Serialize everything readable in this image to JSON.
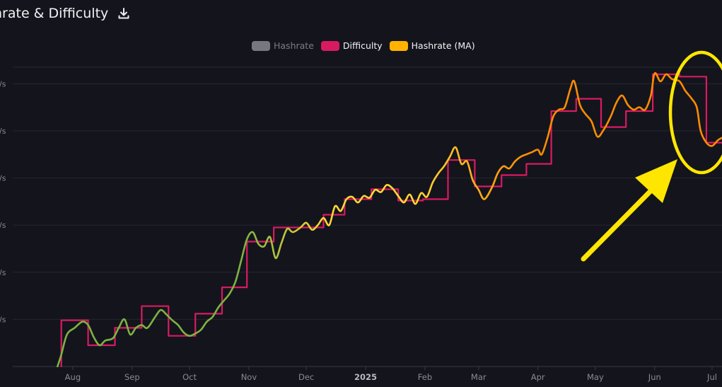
{
  "title": "hrate & Difficulty",
  "icons": {
    "download": "download-icon"
  },
  "legend": [
    {
      "label": "Hashrate",
      "color": "#77777f",
      "text_color": "#7c7c86",
      "disabled": true
    },
    {
      "label": "Difficulty",
      "color": "#d81b60",
      "text_color": "#f2f2f5",
      "disabled": false
    },
    {
      "label": "Hashrate (MA)",
      "color": "#ffb300",
      "text_color": "#f2f2f5",
      "disabled": false
    }
  ],
  "colors": {
    "background": "#14141d",
    "grid": "#262633",
    "difficulty": "#d81b60",
    "ma_low": "#7cb342",
    "ma_mid": "#fdd835",
    "ma_high": "#fb8c00",
    "annotation": "#ffe600"
  },
  "chart_data": {
    "type": "line",
    "title": "",
    "x_tick_labels": [
      {
        "label": "Aug",
        "date": "2024-08-01",
        "bold": false
      },
      {
        "label": "Sep",
        "date": "2024-09-01",
        "bold": false
      },
      {
        "label": "Oct",
        "date": "2024-10-01",
        "bold": false
      },
      {
        "label": "Nov",
        "date": "2024-11-01",
        "bold": false
      },
      {
        "label": "Dec",
        "date": "2024-12-01",
        "bold": false
      },
      {
        "label": "2025",
        "date": "2025-01-01",
        "bold": true
      },
      {
        "label": "Feb",
        "date": "2025-02-01",
        "bold": false
      },
      {
        "label": "Mar",
        "date": "2025-03-01",
        "bold": false
      },
      {
        "label": "Apr",
        "date": "2025-04-01",
        "bold": false
      },
      {
        "label": "May",
        "date": "2025-05-01",
        "bold": false
      },
      {
        "label": "Jun",
        "date": "2025-06-01",
        "bold": false
      },
      {
        "label": "Jul",
        "date": "2025-07-01",
        "bold": false
      }
    ],
    "y_tick_labels": [
      "/s",
      "/s",
      "/s",
      "/s",
      "/s",
      "/s"
    ],
    "y_tick_values": [
      1,
      2,
      3,
      4,
      5,
      6
    ],
    "ylim": [
      0,
      6.35
    ],
    "grid": true,
    "legend_position": "top-center",
    "series": [
      {
        "name": "Difficulty",
        "step": true,
        "points": [
          [
            "2024-07-26",
            0
          ],
          [
            "2024-07-26",
            0.98
          ],
          [
            "2024-08-09",
            0.98
          ],
          [
            "2024-08-09",
            0.45
          ],
          [
            "2024-08-23",
            0.45
          ],
          [
            "2024-08-23",
            0.82
          ],
          [
            "2024-09-06",
            0.82
          ],
          [
            "2024-09-06",
            1.28
          ],
          [
            "2024-09-20",
            1.28
          ],
          [
            "2024-09-20",
            0.65
          ],
          [
            "2024-10-04",
            0.65
          ],
          [
            "2024-10-04",
            1.12
          ],
          [
            "2024-10-18",
            1.12
          ],
          [
            "2024-10-18",
            1.68
          ],
          [
            "2024-10-31",
            1.68
          ],
          [
            "2024-10-31",
            2.65
          ],
          [
            "2024-11-14",
            2.65
          ],
          [
            "2024-11-14",
            2.95
          ],
          [
            "2024-11-27",
            2.95
          ],
          [
            "2024-11-27",
            2.95
          ],
          [
            "2024-12-10",
            2.95
          ],
          [
            "2024-12-10",
            3.22
          ],
          [
            "2024-12-21",
            3.22
          ],
          [
            "2024-12-21",
            3.55
          ],
          [
            "2025-01-04",
            3.55
          ],
          [
            "2025-01-04",
            3.76
          ],
          [
            "2025-01-18",
            3.76
          ],
          [
            "2025-01-18",
            3.52
          ],
          [
            "2025-01-31",
            3.52
          ],
          [
            "2025-01-31",
            3.55
          ],
          [
            "2025-02-13",
            3.55
          ],
          [
            "2025-02-13",
            4.38
          ],
          [
            "2025-02-27",
            4.38
          ],
          [
            "2025-02-27",
            3.82
          ],
          [
            "2025-03-13",
            3.82
          ],
          [
            "2025-03-13",
            4.06
          ],
          [
            "2025-03-26",
            4.06
          ],
          [
            "2025-03-26",
            4.3
          ],
          [
            "2025-04-08",
            4.3
          ],
          [
            "2025-04-08",
            5.42
          ],
          [
            "2025-04-21",
            5.42
          ],
          [
            "2025-04-21",
            5.68
          ],
          [
            "2025-05-04",
            5.68
          ],
          [
            "2025-05-04",
            5.08
          ],
          [
            "2025-05-17",
            5.08
          ],
          [
            "2025-05-17",
            5.42
          ],
          [
            "2025-05-31",
            5.42
          ],
          [
            "2025-05-31",
            6.2
          ],
          [
            "2025-06-14",
            6.2
          ],
          [
            "2025-06-14",
            6.15
          ],
          [
            "2025-06-28",
            6.15
          ],
          [
            "2025-06-28",
            4.75
          ],
          [
            "2025-07-06",
            4.75
          ]
        ]
      },
      {
        "name": "Hashrate (MA)",
        "step": false,
        "points": [
          [
            "2024-07-24",
            0
          ],
          [
            "2024-07-26",
            0.25
          ],
          [
            "2024-07-29",
            0.68
          ],
          [
            "2024-08-02",
            0.82
          ],
          [
            "2024-08-06",
            0.95
          ],
          [
            "2024-08-09",
            0.88
          ],
          [
            "2024-08-12",
            0.62
          ],
          [
            "2024-08-15",
            0.45
          ],
          [
            "2024-08-18",
            0.55
          ],
          [
            "2024-08-22",
            0.6
          ],
          [
            "2024-08-25",
            0.82
          ],
          [
            "2024-08-28",
            1.0
          ],
          [
            "2024-08-31",
            0.68
          ],
          [
            "2024-09-03",
            0.82
          ],
          [
            "2024-09-06",
            0.88
          ],
          [
            "2024-09-09",
            0.82
          ],
          [
            "2024-09-13",
            1.05
          ],
          [
            "2024-09-16",
            1.2
          ],
          [
            "2024-09-19",
            1.1
          ],
          [
            "2024-09-22",
            0.98
          ],
          [
            "2024-09-25",
            0.88
          ],
          [
            "2024-09-28",
            0.72
          ],
          [
            "2024-10-01",
            0.65
          ],
          [
            "2024-10-04",
            0.7
          ],
          [
            "2024-10-07",
            0.78
          ],
          [
            "2024-10-10",
            0.95
          ],
          [
            "2024-10-13",
            1.05
          ],
          [
            "2024-10-16",
            1.25
          ],
          [
            "2024-10-19",
            1.4
          ],
          [
            "2024-10-22",
            1.55
          ],
          [
            "2024-10-25",
            1.8
          ],
          [
            "2024-10-28",
            2.25
          ],
          [
            "2024-10-31",
            2.7
          ],
          [
            "2024-11-03",
            2.85
          ],
          [
            "2024-11-06",
            2.6
          ],
          [
            "2024-11-09",
            2.55
          ],
          [
            "2024-11-12",
            2.75
          ],
          [
            "2024-11-15",
            2.3
          ],
          [
            "2024-11-18",
            2.62
          ],
          [
            "2024-11-21",
            2.92
          ],
          [
            "2024-11-24",
            2.85
          ],
          [
            "2024-11-28",
            2.95
          ],
          [
            "2024-12-01",
            3.05
          ],
          [
            "2024-12-04",
            2.9
          ],
          [
            "2024-12-07",
            3.0
          ],
          [
            "2024-12-10",
            3.15
          ],
          [
            "2024-12-13",
            3.0
          ],
          [
            "2024-12-16",
            3.4
          ],
          [
            "2024-12-19",
            3.3
          ],
          [
            "2024-12-22",
            3.55
          ],
          [
            "2024-12-25",
            3.6
          ],
          [
            "2024-12-28",
            3.48
          ],
          [
            "2024-12-31",
            3.62
          ],
          [
            "2025-01-03",
            3.58
          ],
          [
            "2025-01-06",
            3.75
          ],
          [
            "2025-01-09",
            3.7
          ],
          [
            "2025-01-12",
            3.85
          ],
          [
            "2025-01-15",
            3.78
          ],
          [
            "2025-01-18",
            3.62
          ],
          [
            "2025-01-21",
            3.48
          ],
          [
            "2025-01-24",
            3.65
          ],
          [
            "2025-01-27",
            3.45
          ],
          [
            "2025-01-30",
            3.68
          ],
          [
            "2025-02-02",
            3.6
          ],
          [
            "2025-02-05",
            3.9
          ],
          [
            "2025-02-08",
            4.1
          ],
          [
            "2025-02-11",
            4.25
          ],
          [
            "2025-02-14",
            4.45
          ],
          [
            "2025-02-17",
            4.65
          ],
          [
            "2025-02-20",
            4.3
          ],
          [
            "2025-02-23",
            4.35
          ],
          [
            "2025-02-26",
            3.95
          ],
          [
            "2025-03-01",
            3.75
          ],
          [
            "2025-03-04",
            3.55
          ],
          [
            "2025-03-08",
            3.8
          ],
          [
            "2025-03-11",
            4.1
          ],
          [
            "2025-03-14",
            4.25
          ],
          [
            "2025-03-17",
            4.2
          ],
          [
            "2025-03-20",
            4.35
          ],
          [
            "2025-03-23",
            4.45
          ],
          [
            "2025-03-26",
            4.5
          ],
          [
            "2025-03-29",
            4.55
          ],
          [
            "2025-04-01",
            4.6
          ],
          [
            "2025-04-03",
            4.5
          ],
          [
            "2025-04-06",
            4.85
          ],
          [
            "2025-04-09",
            5.3
          ],
          [
            "2025-04-12",
            5.45
          ],
          [
            "2025-04-15",
            5.5
          ],
          [
            "2025-04-18",
            5.9
          ],
          [
            "2025-04-20",
            6.05
          ],
          [
            "2025-04-23",
            5.55
          ],
          [
            "2025-04-26",
            5.35
          ],
          [
            "2025-04-29",
            5.2
          ],
          [
            "2025-05-02",
            4.88
          ],
          [
            "2025-05-05",
            5.0
          ],
          [
            "2025-05-09",
            5.3
          ],
          [
            "2025-05-12",
            5.6
          ],
          [
            "2025-05-15",
            5.75
          ],
          [
            "2025-05-18",
            5.55
          ],
          [
            "2025-05-21",
            5.45
          ],
          [
            "2025-05-24",
            5.5
          ],
          [
            "2025-05-27",
            5.45
          ],
          [
            "2025-05-30",
            5.75
          ],
          [
            "2025-06-01",
            6.22
          ],
          [
            "2025-06-04",
            6.05
          ],
          [
            "2025-06-07",
            6.2
          ],
          [
            "2025-06-10",
            6.1
          ],
          [
            "2025-06-14",
            6.05
          ],
          [
            "2025-06-17",
            5.85
          ],
          [
            "2025-06-20",
            5.7
          ],
          [
            "2025-06-23",
            5.5
          ],
          [
            "2025-06-25",
            5.0
          ],
          [
            "2025-06-28",
            4.75
          ],
          [
            "2025-07-01",
            4.68
          ],
          [
            "2025-07-04",
            4.8
          ],
          [
            "2025-07-06",
            4.85
          ]
        ]
      }
    ]
  }
}
